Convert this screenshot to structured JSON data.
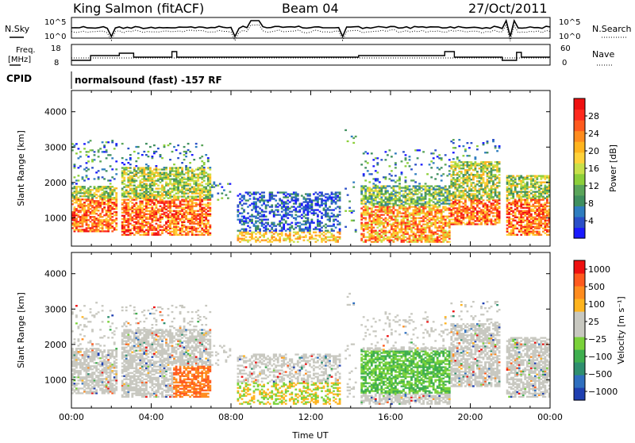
{
  "header": {
    "station": "King Salmon (fitACF)",
    "beam": "Beam 04",
    "date": "27/Oct/2011"
  },
  "side_labels": {
    "nsky": "N.Sky",
    "freq_top": "Freq.",
    "freq_unit": "[MHz]",
    "cpid": "CPID",
    "nsearch": "N.Search",
    "nave": "Nave"
  },
  "noise_axis": {
    "left_top": "10^5",
    "left_bottom": "10^0",
    "right_top": "10^5",
    "right_bottom": "10^0"
  },
  "freq_axis": {
    "left_top": "18",
    "left_bottom": "8",
    "right_top": "60",
    "right_bottom": "0"
  },
  "cpid_text": "normalsound (fast) -157 RF",
  "chart_data": [
    {
      "type": "heatmap",
      "panel": "power",
      "ylabel": "Slant Range [km]",
      "xlabel": "",
      "ylim": [
        200,
        4600
      ],
      "yticks": [
        1000,
        2000,
        3000,
        4000
      ],
      "xticks": [
        "00:00",
        "04:00",
        "08:00",
        "12:00",
        "16:00",
        "20:00",
        "00:00"
      ],
      "colorbar": {
        "label": "Power [dB]",
        "range": [
          0,
          32
        ],
        "ticks": [
          4,
          8,
          12,
          16,
          20,
          24,
          28
        ],
        "colors": [
          "#1a1aff",
          "#2a4fc8",
          "#2f7dbf",
          "#3f8f5f",
          "#5aa55a",
          "#8ccf3a",
          "#c8e04a",
          "#ffd23a",
          "#ffb41e",
          "#ff8c1e",
          "#ff5a1e",
          "#ff2a1e",
          "#ee1010"
        ]
      }
    },
    {
      "type": "heatmap",
      "panel": "velocity",
      "ylabel": "Slant Range [km]",
      "xlabel": "Time UT",
      "ylim": [
        200,
        4600
      ],
      "yticks": [
        1000,
        2000,
        3000,
        4000
      ],
      "xticks": [
        "00:00",
        "04:00",
        "08:00",
        "12:00",
        "16:00",
        "20:00",
        "00:00"
      ],
      "colorbar": {
        "label": "Velocity [m s⁻¹]",
        "ticks": [
          "1000",
          "500",
          "100",
          "25",
          "−25",
          "−100",
          "−500",
          "−1000"
        ],
        "colors": [
          "#1f3fb0",
          "#2f6fbf",
          "#2f8f6f",
          "#3faf4f",
          "#7ad23a",
          "#c8c8c0",
          "#c8c8c0",
          "#ffb41e",
          "#ff8c1e",
          "#ff5a1e",
          "#ee1010"
        ]
      }
    }
  ]
}
